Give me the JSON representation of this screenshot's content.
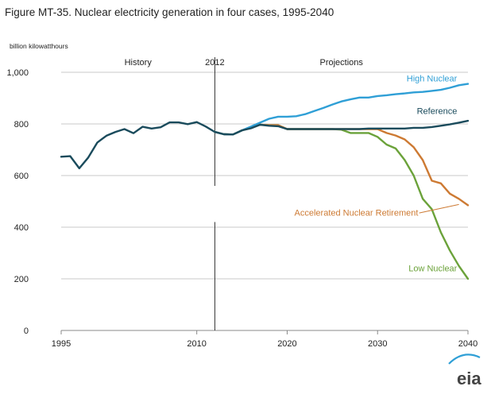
{
  "figure_title": "Figure MT-35. Nuclear electricity generation in four cases, 1995-2040",
  "chart_data": {
    "type": "line",
    "title": "Figure MT-35. Nuclear electricity generation in four cases, 1995-2040",
    "ylabel": "billion kilowatthours",
    "xlabel": "",
    "xlim": [
      1995,
      2040
    ],
    "ylim": [
      0,
      1000
    ],
    "x_ticks": [
      {
        "value": 1995,
        "label": "1995"
      },
      {
        "value": 2010,
        "label": "2010"
      },
      {
        "value": 2020,
        "label": "2020"
      },
      {
        "value": 2030,
        "label": "2030"
      },
      {
        "value": 2040,
        "label": "2040"
      }
    ],
    "y_ticks": [
      {
        "value": 0,
        "label": "0"
      },
      {
        "value": 200,
        "label": "200"
      },
      {
        "value": 400,
        "label": "400"
      },
      {
        "value": 600,
        "label": "600"
      },
      {
        "value": 800,
        "label": "800"
      },
      {
        "value": 1000,
        "label": "1,000"
      }
    ],
    "grid": "horizontal",
    "divider": {
      "x": 2012,
      "label": "2012"
    },
    "section_labels": {
      "history": "History",
      "projections": "Projections"
    },
    "history": {
      "color": "#1a4b5c",
      "x": [
        1995,
        1996,
        1997,
        1998,
        1999,
        2000,
        2001,
        2002,
        2003,
        2004,
        2005,
        2006,
        2007,
        2008,
        2009,
        2010,
        2011,
        2012
      ],
      "values": [
        673,
        675,
        628,
        670,
        728,
        754,
        769,
        780,
        764,
        789,
        782,
        787,
        806,
        806,
        799,
        807,
        790,
        769
      ]
    },
    "series": [
      {
        "name": "Low Nuclear",
        "color": "#6ba23a",
        "x": [
          2012,
          2013,
          2014,
          2015,
          2016,
          2017,
          2018,
          2019,
          2020,
          2021,
          2022,
          2023,
          2024,
          2025,
          2026,
          2027,
          2028,
          2029,
          2030,
          2031,
          2032,
          2033,
          2034,
          2035,
          2036,
          2037,
          2038,
          2039,
          2040
        ],
        "values": [
          769,
          760,
          759,
          775,
          785,
          797,
          795,
          795,
          780,
          780,
          780,
          780,
          780,
          780,
          778,
          765,
          765,
          765,
          750,
          720,
          705,
          660,
          600,
          510,
          470,
          380,
          310,
          250,
          200
        ]
      },
      {
        "name": "Accelerated Nuclear Retirement",
        "color": "#cd7a33",
        "x": [
          2012,
          2013,
          2014,
          2015,
          2016,
          2017,
          2018,
          2019,
          2020,
          2021,
          2022,
          2023,
          2024,
          2025,
          2026,
          2027,
          2028,
          2029,
          2030,
          2031,
          2032,
          2033,
          2034,
          2035,
          2036,
          2037,
          2038,
          2039,
          2040
        ],
        "values": [
          769,
          760,
          759,
          775,
          785,
          797,
          795,
          795,
          780,
          780,
          780,
          780,
          780,
          780,
          780,
          780,
          780,
          780,
          780,
          765,
          755,
          740,
          710,
          660,
          580,
          570,
          530,
          510,
          485
        ]
      },
      {
        "name": "High Nuclear",
        "color": "#2f9fd6",
        "x": [
          2012,
          2013,
          2014,
          2015,
          2016,
          2017,
          2018,
          2019,
          2020,
          2021,
          2022,
          2023,
          2024,
          2025,
          2026,
          2027,
          2028,
          2029,
          2030,
          2031,
          2032,
          2033,
          2034,
          2035,
          2036,
          2037,
          2038,
          2039,
          2040
        ],
        "values": [
          769,
          760,
          759,
          775,
          790,
          805,
          820,
          828,
          828,
          830,
          838,
          850,
          862,
          875,
          887,
          895,
          902,
          902,
          908,
          911,
          915,
          918,
          922,
          924,
          928,
          932,
          940,
          950,
          955
        ]
      },
      {
        "name": "Reference",
        "color": "#1a4b5c",
        "x": [
          2012,
          2013,
          2014,
          2015,
          2016,
          2017,
          2018,
          2019,
          2020,
          2021,
          2022,
          2023,
          2024,
          2025,
          2026,
          2027,
          2028,
          2029,
          2030,
          2031,
          2032,
          2033,
          2034,
          2035,
          2036,
          2037,
          2038,
          2039,
          2040
        ],
        "values": [
          769,
          760,
          759,
          775,
          783,
          797,
          793,
          791,
          780,
          780,
          780,
          780,
          780,
          780,
          780,
          780,
          780,
          782,
          782,
          782,
          782,
          782,
          785,
          785,
          788,
          793,
          798,
          805,
          812
        ]
      }
    ]
  },
  "logo_text": "eia"
}
